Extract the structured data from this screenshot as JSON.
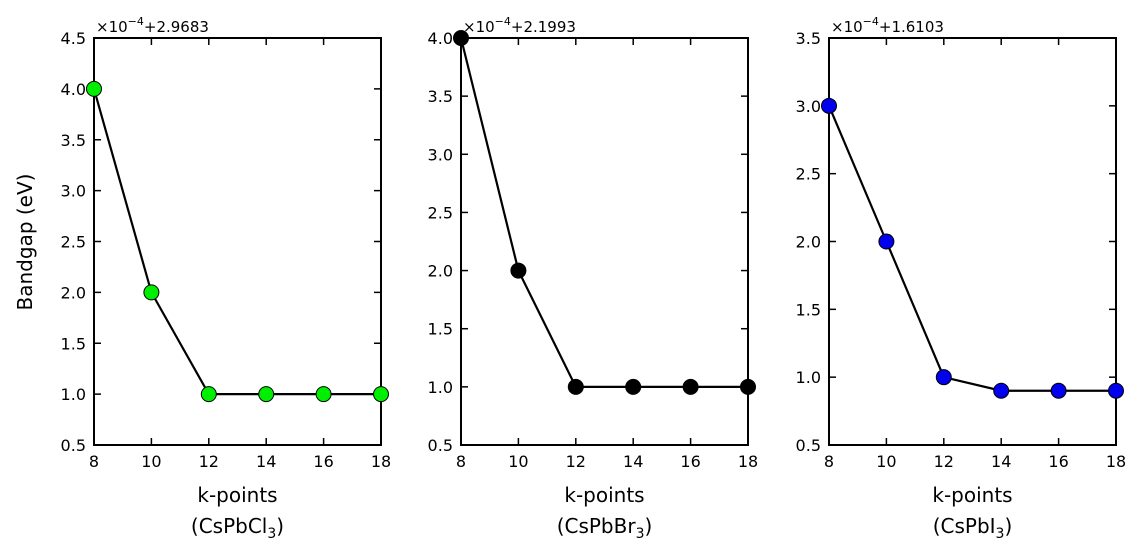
{
  "ylabel": "Bandgap (eV)",
  "chart_data": [
    {
      "type": "line",
      "xlabel": "k-points",
      "compound": {
        "pre": "(CsPbCl",
        "sub": "3",
        "post": ")"
      },
      "offset": {
        "pre": "×10",
        "exp": "−4",
        "post": "+2.9683"
      },
      "x": [
        8,
        10,
        12,
        14,
        16,
        18
      ],
      "y": [
        4.0,
        2.0,
        1.0,
        1.0,
        1.0,
        1.0
      ],
      "xlim": [
        8,
        18
      ],
      "ylim": [
        0.5,
        4.5
      ],
      "xticks": [
        "8",
        "10",
        "12",
        "14",
        "16",
        "18"
      ],
      "yticks": [
        "0.5",
        "1.0",
        "1.5",
        "2.0",
        "2.5",
        "3.0",
        "3.5",
        "4.0",
        "4.5"
      ],
      "marker_color": "#00ee00",
      "grid": false
    },
    {
      "type": "line",
      "xlabel": "k-points",
      "compound": {
        "pre": "(CsPbBr",
        "sub": "3",
        "post": ")"
      },
      "offset": {
        "pre": "×10",
        "exp": "−4",
        "post": "+2.1993"
      },
      "x": [
        8,
        10,
        12,
        14,
        16,
        18
      ],
      "y": [
        4.0,
        2.0,
        1.0,
        1.0,
        1.0,
        1.0
      ],
      "xlim": [
        8,
        18
      ],
      "ylim": [
        0.5,
        4.0
      ],
      "xticks": [
        "8",
        "10",
        "12",
        "14",
        "16",
        "18"
      ],
      "yticks": [
        "0.5",
        "1.0",
        "1.5",
        "2.0",
        "2.5",
        "3.0",
        "3.5",
        "4.0"
      ],
      "marker_color": "#000000",
      "grid": false
    },
    {
      "type": "line",
      "xlabel": "k-points",
      "compound": {
        "pre": "(CsPbI",
        "sub": "3",
        "post": ")"
      },
      "offset": {
        "pre": "×10",
        "exp": "−4",
        "post": "+1.6103"
      },
      "x": [
        8,
        10,
        12,
        14,
        16,
        18
      ],
      "y": [
        3.0,
        2.0,
        1.0,
        0.9,
        0.9,
        0.9
      ],
      "xlim": [
        8,
        18
      ],
      "ylim": [
        0.5,
        3.5
      ],
      "xticks": [
        "8",
        "10",
        "12",
        "14",
        "16",
        "18"
      ],
      "yticks": [
        "0.5",
        "1.0",
        "1.5",
        "2.0",
        "2.5",
        "3.0",
        "3.5"
      ],
      "marker_color": "#0000ee",
      "grid": false
    }
  ]
}
